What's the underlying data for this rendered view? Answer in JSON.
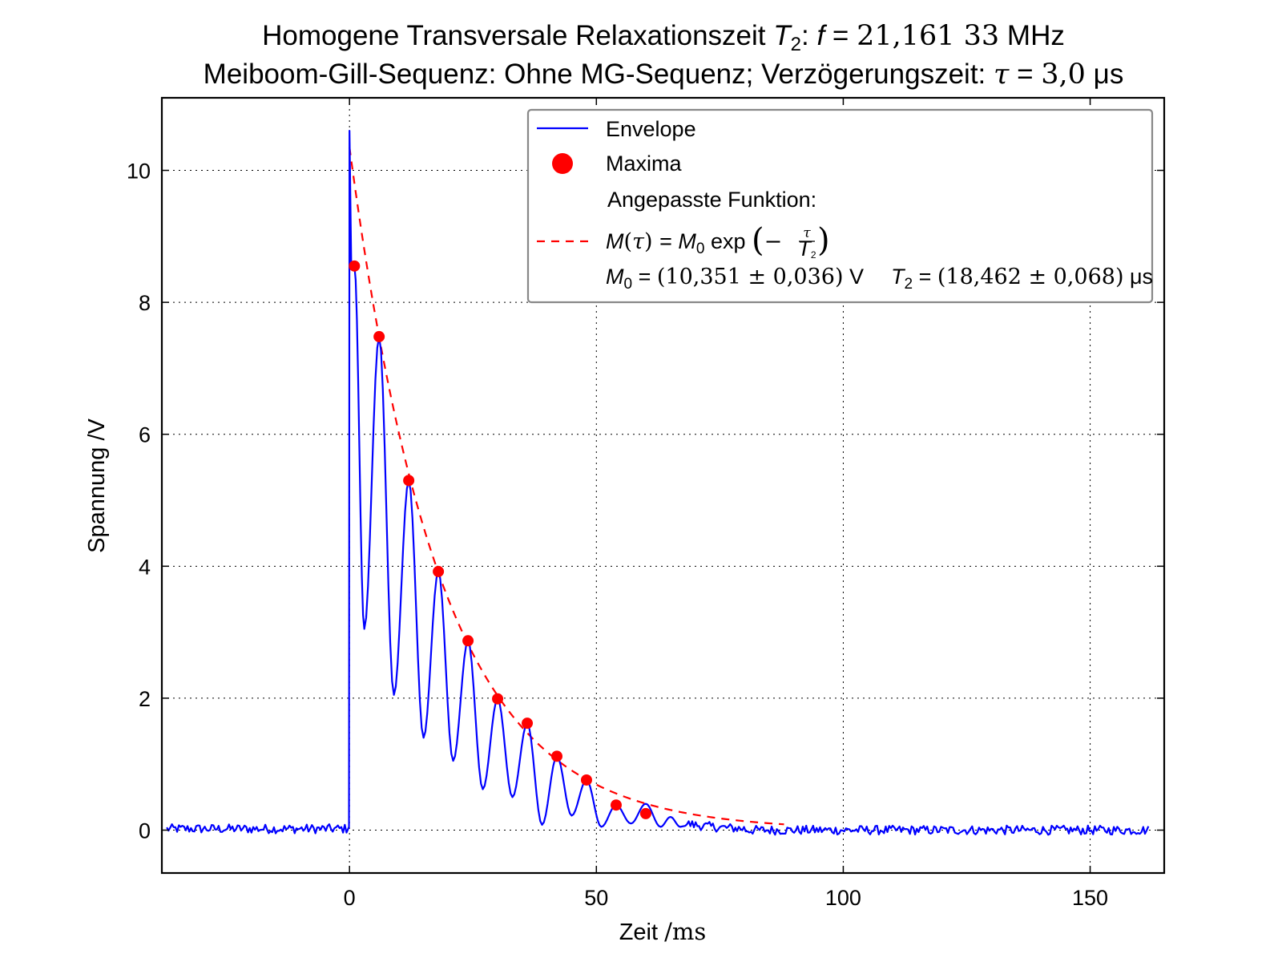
{
  "chart_data": {
    "type": "line",
    "title": {
      "line1": {
        "prefix": "Homogene Transversale Relaxationszeit ",
        "T": "T",
        "T_sub": "2",
        "mid": ": ",
        "f": "f",
        "eq": " = ",
        "value": "21,161 33",
        "unit": " MHz"
      },
      "line2": {
        "prefix": "Meiboom-Gill-Sequenz: Ohne MG-Sequenz; Verzögerungszeit: ",
        "tau": "τ",
        "eq": " = ",
        "value": "3,0",
        "unit": " μs"
      }
    },
    "xlabel": {
      "name": "Zeit ",
      "unit": "/ms"
    },
    "ylabel": "Spannung /V",
    "xlim": [
      -38,
      165
    ],
    "ylim": [
      -0.65,
      11.1
    ],
    "xticks": [
      0,
      50,
      100,
      150
    ],
    "yticks": [
      0,
      2,
      4,
      6,
      8,
      10
    ],
    "grid": true,
    "legend_position": "top-right",
    "legend": {
      "envelope_label": "Envelope",
      "maxima_label": "Maxima",
      "fit_heading": "Angepasste Funktion:",
      "fit_formula": {
        "lhs": "M(τ) = ",
        "m0": "M",
        "m0_sub": "0",
        "exp": " exp ",
        "open": "(",
        "minus": "−",
        "num": "τ",
        "den_T": "T",
        "den_sub": "2",
        "close": ")"
      },
      "fit_params": {
        "m0": "M",
        "m0_sub": "0",
        "m0_eq": " = ",
        "m0_val": "(10,351 ± 0,036)",
        "m0_unit": " V",
        "t2": "T",
        "t2_sub": "2",
        "t2_eq": " = ",
        "t2_val": "(18,462 ± 0,068)",
        "t2_unit": " μs"
      }
    },
    "series": [
      {
        "name": "Envelope",
        "kind": "line",
        "color": "#0000ff",
        "envelope_model": {
          "baseline_noise_amplitude": 0.07,
          "x_start": -37,
          "x_end": 162,
          "pulse_x": 0,
          "pulse_peak": 10.6,
          "echo_spacing": 6,
          "echo_period_first": 1,
          "trough_values": [
            3.05,
            2.05,
            1.4,
            1.05,
            0.62,
            0.5,
            0.08,
            0.22,
            0.05,
            0.1
          ]
        }
      },
      {
        "name": "Maxima",
        "kind": "scatter",
        "color": "#ff0000",
        "x": [
          1,
          6,
          12,
          18,
          24,
          30,
          36,
          42,
          48,
          54,
          60
        ],
        "y": [
          8.55,
          7.48,
          5.3,
          3.92,
          2.87,
          1.99,
          1.62,
          1.12,
          0.76,
          0.38,
          0.25
        ]
      },
      {
        "name": "Angepasste Funktion",
        "kind": "line",
        "style": "dashed",
        "color": "#ff0000",
        "function": "M0*exp(-t/T2)",
        "M0": 10.351,
        "T2": 18.462,
        "x_range": [
          0,
          88
        ]
      }
    ]
  }
}
